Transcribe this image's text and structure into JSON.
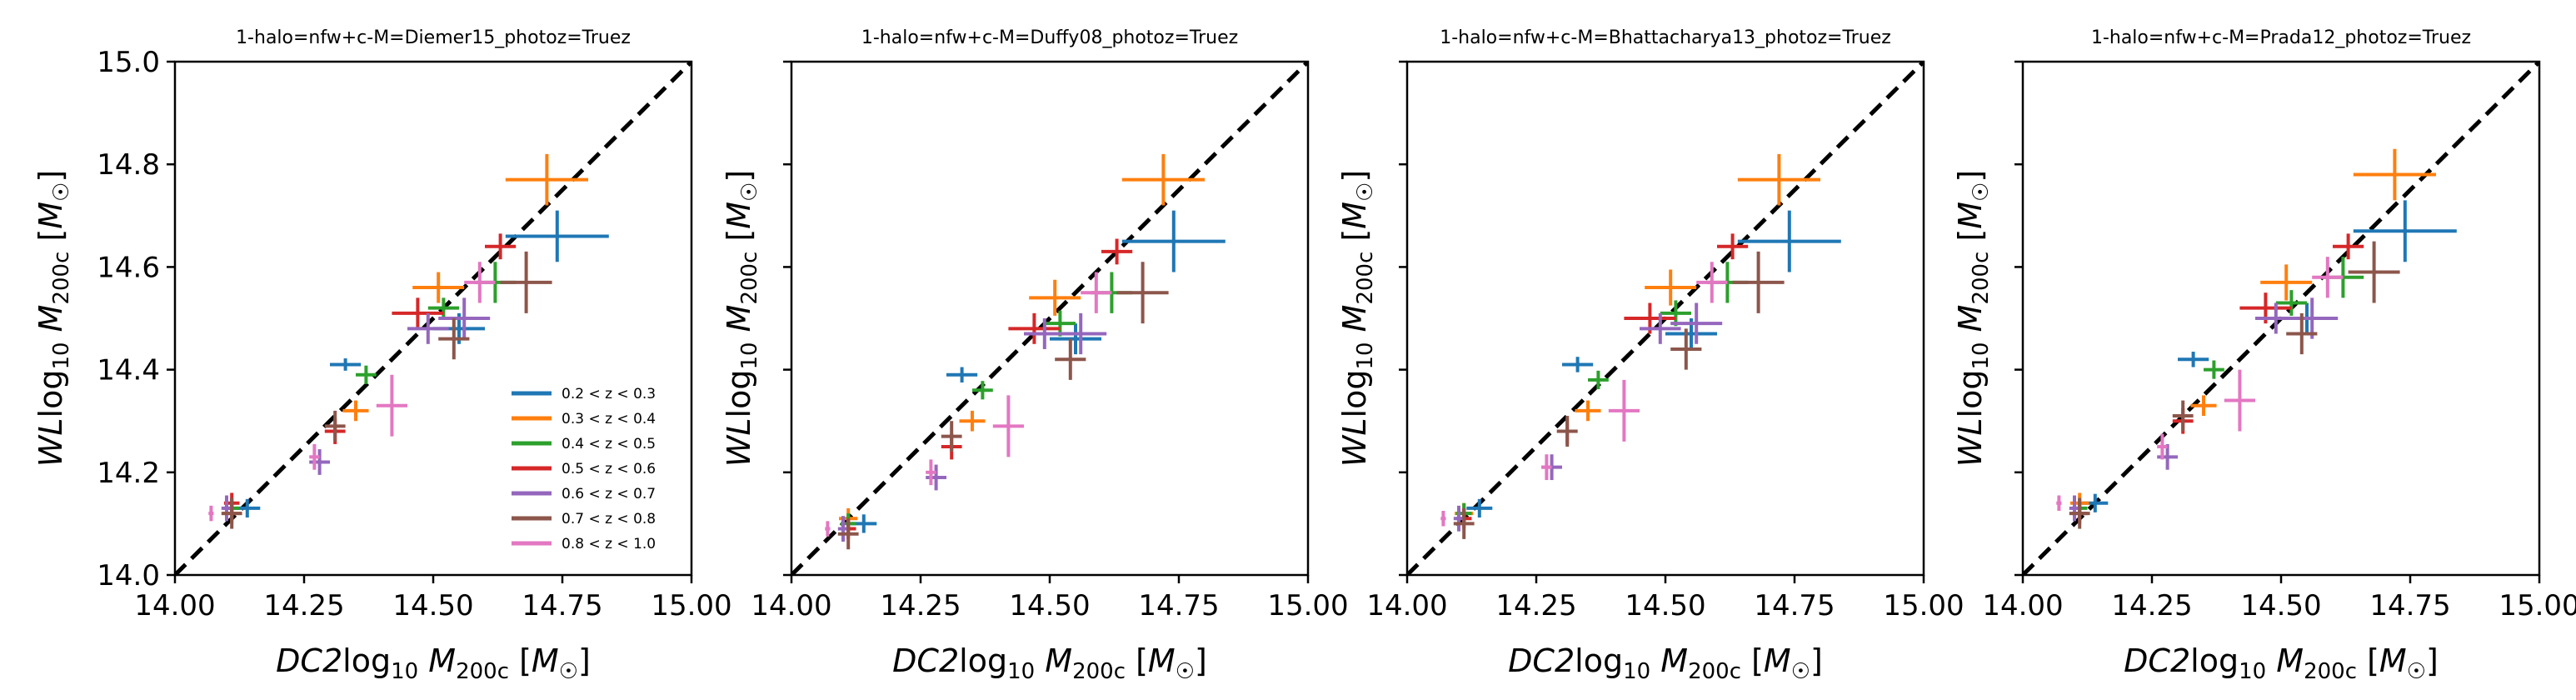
{
  "figure": {
    "legend": {
      "placement": "lower-right",
      "panel": 0,
      "entries": [
        {
          "label": "0.2 < z < 0.3",
          "color": "#1f77b4"
        },
        {
          "label": "0.3 < z < 0.4",
          "color": "#ff7f0e"
        },
        {
          "label": "0.4 < z < 0.5",
          "color": "#2ca02c"
        },
        {
          "label": "0.5 < z < 0.6",
          "color": "#d62728"
        },
        {
          "label": "0.6 < z < 0.7",
          "color": "#9467bd"
        },
        {
          "label": "0.7 < z < 0.8",
          "color": "#8c564b"
        },
        {
          "label": "0.8 < z < 1.0",
          "color": "#e377c2"
        }
      ]
    },
    "one_to_one_line": {
      "style": "dashed",
      "color": "#000000"
    }
  },
  "chart_data": [
    {
      "type": "scatter",
      "title": "1-halo=nfw+c-M=Diemer15_photoz=Truez",
      "xlabel": "DC2 log10 M200c [M☉]",
      "ylabel": "WL log10 M200c [M☉]",
      "xlim": [
        14.0,
        15.0
      ],
      "ylim": [
        14.0,
        15.0
      ],
      "xticks": [
        "14.00",
        "14.25",
        "14.50",
        "14.75",
        "15.00"
      ],
      "yticks": [
        "14.0",
        "14.2",
        "14.4",
        "14.6",
        "14.8",
        "15.0"
      ],
      "show_ytick_labels": true,
      "grid": false,
      "series": [
        {
          "name": "0.2 < z < 0.3",
          "color": "#1f77b4",
          "points": [
            [
              14.14,
              14.13,
              0.025,
              0.018
            ],
            [
              14.33,
              14.41,
              0.03,
              0.012
            ],
            [
              14.55,
              14.48,
              0.05,
              0.03
            ],
            [
              14.74,
              14.66,
              0.1,
              0.05
            ]
          ]
        },
        {
          "name": "0.3 < z < 0.4",
          "color": "#ff7f0e",
          "points": [
            [
              14.11,
              14.12,
              0.018,
              0.02
            ],
            [
              14.35,
              14.32,
              0.025,
              0.02
            ],
            [
              14.51,
              14.56,
              0.05,
              0.03
            ],
            [
              14.72,
              14.77,
              0.08,
              0.05
            ]
          ]
        },
        {
          "name": "0.4 < z < 0.5",
          "color": "#2ca02c",
          "points": [
            [
              14.11,
              14.13,
              0.015,
              0.02
            ],
            [
              14.37,
              14.39,
              0.02,
              0.018
            ],
            [
              14.52,
              14.52,
              0.03,
              0.02
            ],
            [
              14.62,
              14.57,
              0.04,
              0.04
            ]
          ]
        },
        {
          "name": "0.5 < z < 0.6",
          "color": "#d62728",
          "points": [
            [
              14.11,
              14.14,
              0.015,
              0.02
            ],
            [
              14.31,
              14.28,
              0.02,
              0.025
            ],
            [
              14.47,
              14.51,
              0.05,
              0.03
            ],
            [
              14.63,
              14.64,
              0.03,
              0.025
            ]
          ]
        },
        {
          "name": "0.6 < z < 0.7",
          "color": "#9467bd",
          "points": [
            [
              14.1,
              14.13,
              0.01,
              0.025
            ],
            [
              14.28,
              14.22,
              0.02,
              0.025
            ],
            [
              14.49,
              14.48,
              0.04,
              0.03
            ],
            [
              14.56,
              14.5,
              0.05,
              0.04
            ]
          ]
        },
        {
          "name": "0.7 < z < 0.8",
          "color": "#8c564b",
          "points": [
            [
              14.11,
              14.12,
              0.02,
              0.03
            ],
            [
              14.31,
              14.29,
              0.02,
              0.03
            ],
            [
              14.54,
              14.46,
              0.03,
              0.04
            ],
            [
              14.68,
              14.57,
              0.05,
              0.06
            ]
          ]
        },
        {
          "name": "0.8 < z < 1.0",
          "color": "#e377c2",
          "points": [
            [
              14.07,
              14.12,
              0.005,
              0.015
            ],
            [
              14.27,
              14.23,
              0.01,
              0.025
            ],
            [
              14.42,
              14.33,
              0.03,
              0.06
            ],
            [
              14.59,
              14.57,
              0.03,
              0.04
            ]
          ]
        }
      ]
    },
    {
      "type": "scatter",
      "title": "1-halo=nfw+c-M=Duffy08_photoz=Truez",
      "xlabel": "DC2 log10 M200c [M☉]",
      "ylabel": "WL log10 M200c [M☉]",
      "xlim": [
        14.0,
        15.0
      ],
      "ylim": [
        14.0,
        15.0
      ],
      "xticks": [
        "14.00",
        "14.25",
        "14.50",
        "14.75",
        "15.00"
      ],
      "yticks": [],
      "show_ytick_labels": false,
      "grid": false,
      "series": [
        {
          "name": "0.2 < z < 0.3",
          "color": "#1f77b4",
          "points": [
            [
              14.14,
              14.1,
              0.025,
              0.018
            ],
            [
              14.33,
              14.39,
              0.03,
              0.015
            ],
            [
              14.55,
              14.46,
              0.05,
              0.03
            ],
            [
              14.74,
              14.65,
              0.1,
              0.06
            ]
          ]
        },
        {
          "name": "0.3 < z < 0.4",
          "color": "#ff7f0e",
          "points": [
            [
              14.11,
              14.11,
              0.018,
              0.02
            ],
            [
              14.35,
              14.3,
              0.025,
              0.02
            ],
            [
              14.51,
              14.54,
              0.05,
              0.035
            ],
            [
              14.72,
              14.77,
              0.08,
              0.05
            ]
          ]
        },
        {
          "name": "0.4 < z < 0.5",
          "color": "#2ca02c",
          "points": [
            [
              14.11,
              14.1,
              0.015,
              0.02
            ],
            [
              14.37,
              14.36,
              0.02,
              0.018
            ],
            [
              14.52,
              14.49,
              0.03,
              0.025
            ],
            [
              14.62,
              14.55,
              0.04,
              0.04
            ]
          ]
        },
        {
          "name": "0.5 < z < 0.6",
          "color": "#d62728",
          "points": [
            [
              14.11,
              14.09,
              0.015,
              0.02
            ],
            [
              14.31,
              14.25,
              0.02,
              0.025
            ],
            [
              14.47,
              14.48,
              0.05,
              0.03
            ],
            [
              14.63,
              14.63,
              0.03,
              0.025
            ]
          ]
        },
        {
          "name": "0.6 < z < 0.7",
          "color": "#9467bd",
          "points": [
            [
              14.1,
              14.09,
              0.01,
              0.025
            ],
            [
              14.28,
              14.19,
              0.02,
              0.025
            ],
            [
              14.49,
              14.47,
              0.04,
              0.03
            ],
            [
              14.56,
              14.47,
              0.05,
              0.04
            ]
          ]
        },
        {
          "name": "0.7 < z < 0.8",
          "color": "#8c564b",
          "points": [
            [
              14.11,
              14.08,
              0.02,
              0.03
            ],
            [
              14.31,
              14.27,
              0.02,
              0.03
            ],
            [
              14.54,
              14.42,
              0.03,
              0.04
            ],
            [
              14.68,
              14.55,
              0.05,
              0.06
            ]
          ]
        },
        {
          "name": "0.8 < z < 1.0",
          "color": "#e377c2",
          "points": [
            [
              14.07,
              14.09,
              0.005,
              0.015
            ],
            [
              14.27,
              14.2,
              0.01,
              0.025
            ],
            [
              14.42,
              14.29,
              0.03,
              0.06
            ],
            [
              14.59,
              14.55,
              0.03,
              0.04
            ]
          ]
        }
      ]
    },
    {
      "type": "scatter",
      "title": "1-halo=nfw+c-M=Bhattacharya13_photoz=Truez",
      "xlabel": "DC2 log10 M200c [M☉]",
      "ylabel": "WL log10 M200c [M☉]",
      "xlim": [
        14.0,
        15.0
      ],
      "ylim": [
        14.0,
        15.0
      ],
      "xticks": [
        "14.00",
        "14.25",
        "14.50",
        "14.75",
        "15.00"
      ],
      "yticks": [],
      "show_ytick_labels": false,
      "grid": false,
      "series": [
        {
          "name": "0.2 < z < 0.3",
          "color": "#1f77b4",
          "points": [
            [
              14.14,
              14.13,
              0.025,
              0.018
            ],
            [
              14.33,
              14.41,
              0.03,
              0.015
            ],
            [
              14.55,
              14.47,
              0.05,
              0.03
            ],
            [
              14.74,
              14.65,
              0.1,
              0.06
            ]
          ]
        },
        {
          "name": "0.3 < z < 0.4",
          "color": "#ff7f0e",
          "points": [
            [
              14.11,
              14.12,
              0.018,
              0.02
            ],
            [
              14.35,
              14.32,
              0.025,
              0.02
            ],
            [
              14.51,
              14.56,
              0.05,
              0.035
            ],
            [
              14.72,
              14.77,
              0.08,
              0.05
            ]
          ]
        },
        {
          "name": "0.4 < z < 0.5",
          "color": "#2ca02c",
          "points": [
            [
              14.11,
              14.12,
              0.015,
              0.02
            ],
            [
              14.37,
              14.38,
              0.02,
              0.018
            ],
            [
              14.52,
              14.51,
              0.03,
              0.025
            ],
            [
              14.62,
              14.57,
              0.04,
              0.04
            ]
          ]
        },
        {
          "name": "0.5 < z < 0.6",
          "color": "#d62728",
          "points": [
            [
              14.11,
              14.11,
              0.015,
              0.02
            ],
            [
              14.31,
              14.28,
              0.02,
              0.025
            ],
            [
              14.47,
              14.5,
              0.05,
              0.03
            ],
            [
              14.63,
              14.64,
              0.03,
              0.025
            ]
          ]
        },
        {
          "name": "0.6 < z < 0.7",
          "color": "#9467bd",
          "points": [
            [
              14.1,
              14.11,
              0.01,
              0.025
            ],
            [
              14.28,
              14.21,
              0.02,
              0.025
            ],
            [
              14.49,
              14.48,
              0.04,
              0.03
            ],
            [
              14.56,
              14.49,
              0.05,
              0.04
            ]
          ]
        },
        {
          "name": "0.7 < z < 0.8",
          "color": "#8c564b",
          "points": [
            [
              14.11,
              14.1,
              0.02,
              0.03
            ],
            [
              14.31,
              14.28,
              0.02,
              0.03
            ],
            [
              14.54,
              14.44,
              0.03,
              0.04
            ],
            [
              14.68,
              14.57,
              0.05,
              0.06
            ]
          ]
        },
        {
          "name": "0.8 < z < 1.0",
          "color": "#e377c2",
          "points": [
            [
              14.07,
              14.11,
              0.005,
              0.015
            ],
            [
              14.27,
              14.21,
              0.01,
              0.025
            ],
            [
              14.42,
              14.32,
              0.03,
              0.06
            ],
            [
              14.59,
              14.57,
              0.03,
              0.04
            ]
          ]
        }
      ]
    },
    {
      "type": "scatter",
      "title": "1-halo=nfw+c-M=Prada12_photoz=Truez",
      "xlabel": "DC2 log10 M200c [M☉]",
      "ylabel": "WL log10 M200c [M☉]",
      "xlim": [
        14.0,
        15.0
      ],
      "ylim": [
        14.0,
        15.0
      ],
      "xticks": [
        "14.00",
        "14.25",
        "14.50",
        "14.75",
        "15.00"
      ],
      "yticks": [],
      "show_ytick_labels": false,
      "grid": false,
      "series": [
        {
          "name": "0.2 < z < 0.3",
          "color": "#1f77b4",
          "points": [
            [
              14.14,
              14.14,
              0.025,
              0.018
            ],
            [
              14.33,
              14.42,
              0.03,
              0.015
            ],
            [
              14.55,
              14.5,
              0.05,
              0.03
            ],
            [
              14.74,
              14.67,
              0.1,
              0.06
            ]
          ]
        },
        {
          "name": "0.3 < z < 0.4",
          "color": "#ff7f0e",
          "points": [
            [
              14.11,
              14.14,
              0.018,
              0.02
            ],
            [
              14.35,
              14.33,
              0.025,
              0.02
            ],
            [
              14.51,
              14.57,
              0.05,
              0.035
            ],
            [
              14.72,
              14.78,
              0.08,
              0.05
            ]
          ]
        },
        {
          "name": "0.4 < z < 0.5",
          "color": "#2ca02c",
          "points": [
            [
              14.11,
              14.13,
              0.015,
              0.02
            ],
            [
              14.37,
              14.4,
              0.02,
              0.018
            ],
            [
              14.52,
              14.53,
              0.03,
              0.025
            ],
            [
              14.62,
              14.58,
              0.04,
              0.04
            ]
          ]
        },
        {
          "name": "0.5 < z < 0.6",
          "color": "#d62728",
          "points": [
            [
              14.11,
              14.12,
              0.015,
              0.02
            ],
            [
              14.31,
              14.3,
              0.02,
              0.025
            ],
            [
              14.47,
              14.52,
              0.05,
              0.03
            ],
            [
              14.63,
              14.64,
              0.03,
              0.025
            ]
          ]
        },
        {
          "name": "0.6 < z < 0.7",
          "color": "#9467bd",
          "points": [
            [
              14.1,
              14.13,
              0.01,
              0.025
            ],
            [
              14.28,
              14.23,
              0.02,
              0.025
            ],
            [
              14.49,
              14.5,
              0.04,
              0.03
            ],
            [
              14.56,
              14.5,
              0.05,
              0.04
            ]
          ]
        },
        {
          "name": "0.7 < z < 0.8",
          "color": "#8c564b",
          "points": [
            [
              14.11,
              14.12,
              0.02,
              0.03
            ],
            [
              14.31,
              14.31,
              0.02,
              0.03
            ],
            [
              14.54,
              14.47,
              0.03,
              0.04
            ],
            [
              14.68,
              14.59,
              0.05,
              0.06
            ]
          ]
        },
        {
          "name": "0.8 < z < 1.0",
          "color": "#e377c2",
          "points": [
            [
              14.07,
              14.14,
              0.005,
              0.015
            ],
            [
              14.27,
              14.25,
              0.01,
              0.025
            ],
            [
              14.42,
              14.34,
              0.03,
              0.06
            ],
            [
              14.59,
              14.58,
              0.03,
              0.04
            ]
          ]
        }
      ]
    }
  ]
}
